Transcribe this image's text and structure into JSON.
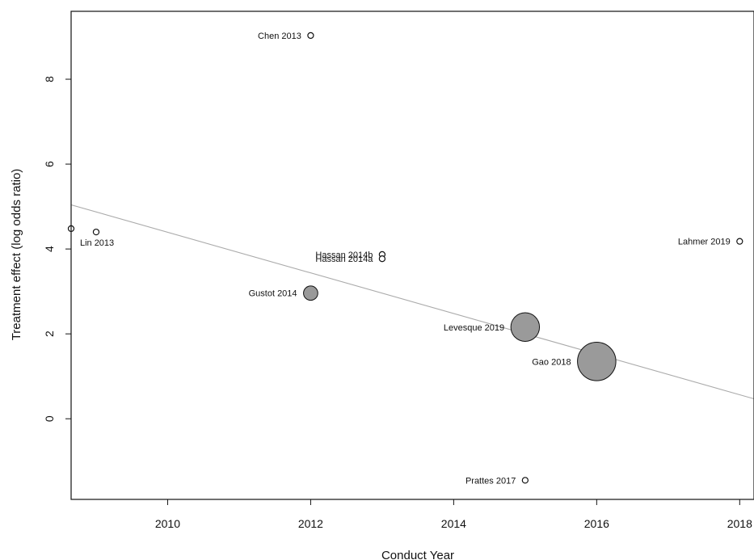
{
  "chart_data": {
    "type": "scatter",
    "subtype": "meta-regression bubble plot",
    "xlabel": "Conduct Year",
    "ylabel": "Treatment effect (log odds ratio)",
    "xlim": [
      2008.65,
      2018.2
    ],
    "ylim": [
      -1.9,
      9.6
    ],
    "x_ticks": [
      2010,
      2012,
      2014,
      2016,
      2018
    ],
    "y_ticks": [
      0,
      2,
      4,
      6,
      8
    ],
    "grid": false,
    "points": [
      {
        "label": "Chen 2013",
        "x": 2012,
        "y": 9.03,
        "weight": 0.4,
        "label_side": "left"
      },
      {
        "label": "Lin 2013",
        "x": 2009,
        "y": 4.4,
        "weight": 0.4,
        "label_side": "below"
      },
      {
        "label": "",
        "x": 2008.65,
        "y": 4.48,
        "weight": 0.4,
        "label_side": "none"
      },
      {
        "label": "Hassan 2014b",
        "x": 2013,
        "y": 3.87,
        "weight": 0.4,
        "label_side": "left"
      },
      {
        "label": "Hassan 2014a",
        "x": 2013,
        "y": 3.77,
        "weight": 0.4,
        "label_side": "left"
      },
      {
        "label": "Gustot 2014",
        "x": 2012,
        "y": 2.96,
        "weight": 2.5,
        "label_side": "left"
      },
      {
        "label": "Levesque 2019",
        "x": 2015,
        "y": 2.16,
        "weight": 10,
        "label_side": "left"
      },
      {
        "label": "Gao 2018",
        "x": 2016,
        "y": 1.35,
        "weight": 18,
        "label_side": "left"
      },
      {
        "label": "Lahmer 2019",
        "x": 2018,
        "y": 4.18,
        "weight": 0.4,
        "label_side": "left"
      },
      {
        "label": "Prattes 2017",
        "x": 2015,
        "y": -1.45,
        "weight": 0.4,
        "label_side": "left"
      }
    ],
    "regression_line": {
      "x": [
        2008.65,
        2018.2
      ],
      "y": [
        5.04,
        0.47
      ],
      "color": "#aaaaaa"
    },
    "colors": {
      "bubble_fill": "#9a9a9a",
      "bubble_stroke": "#111111",
      "axis": "#111111"
    }
  }
}
